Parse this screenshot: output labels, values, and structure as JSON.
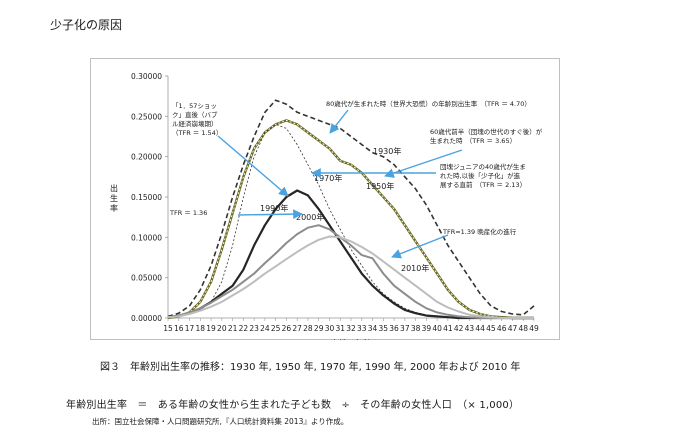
{
  "page_title": "少子化の原因",
  "caption": "図３　年齢別出生率の推移：1930 年, 1950 年, 1970 年, 1990 年, 2000 年および 2010 年",
  "formula": "年齢別出生率　＝　ある年齢の女性から生まれた子ども数　÷　その年齢の女性人口　（× 1,000）",
  "source": "出所：国立社会保障・人口問題研究所,『人口統計資料集 2013』より作成。",
  "chart_data": {
    "type": "line",
    "xlabel": "女性の年齢",
    "ylabel": "出生率",
    "ylim": [
      0,
      0.3
    ],
    "yticks": [
      "0.00000",
      "0.05000",
      "0.10000",
      "0.15000",
      "0.20000",
      "0.25000",
      "0.30000"
    ],
    "x": [
      15,
      16,
      17,
      18,
      19,
      20,
      21,
      22,
      23,
      24,
      25,
      26,
      27,
      28,
      29,
      30,
      31,
      32,
      33,
      34,
      35,
      36,
      37,
      38,
      39,
      40,
      41,
      42,
      43,
      44,
      45,
      46,
      47,
      48,
      49
    ],
    "series_labels": [
      "1930年",
      "1950年",
      "1970年",
      "1990年",
      "2000年",
      "2010年"
    ],
    "series": [
      {
        "name": "1930年",
        "values": [
          0.002,
          0.006,
          0.015,
          0.035,
          0.065,
          0.105,
          0.15,
          0.19,
          0.225,
          0.255,
          0.27,
          0.265,
          0.255,
          0.25,
          0.245,
          0.24,
          0.235,
          0.225,
          0.215,
          0.205,
          0.2,
          0.19,
          0.175,
          0.16,
          0.14,
          0.115,
          0.09,
          0.07,
          0.05,
          0.03,
          0.015,
          0.008,
          0.005,
          0.004,
          0.015
        ]
      },
      {
        "name": "1950年",
        "values": [
          0.0,
          0.002,
          0.007,
          0.02,
          0.045,
          0.085,
          0.13,
          0.175,
          0.21,
          0.23,
          0.24,
          0.245,
          0.24,
          0.23,
          0.22,
          0.21,
          0.195,
          0.19,
          0.18,
          0.165,
          0.15,
          0.135,
          0.115,
          0.095,
          0.075,
          0.055,
          0.035,
          0.02,
          0.01,
          0.005,
          0.002,
          0.001,
          0.0,
          0.0,
          0.0
        ]
      },
      {
        "name": "1970年",
        "values": [
          0.0,
          0.002,
          0.005,
          0.01,
          0.02,
          0.045,
          0.09,
          0.15,
          0.2,
          0.23,
          0.24,
          0.235,
          0.215,
          0.19,
          0.165,
          0.135,
          0.11,
          0.085,
          0.065,
          0.045,
          0.03,
          0.02,
          0.012,
          0.007,
          0.004,
          0.002,
          0.001,
          0.0,
          0.0,
          0.0,
          0.0,
          0.0,
          0.0,
          0.0,
          0.0
        ]
      },
      {
        "name": "1990年",
        "values": [
          0.001,
          0.003,
          0.006,
          0.012,
          0.02,
          0.03,
          0.04,
          0.06,
          0.09,
          0.115,
          0.135,
          0.15,
          0.158,
          0.152,
          0.135,
          0.115,
          0.095,
          0.075,
          0.055,
          0.04,
          0.028,
          0.018,
          0.01,
          0.006,
          0.003,
          0.002,
          0.001,
          0.0,
          0.0,
          0.0,
          0.0,
          0.0,
          0.0,
          0.0,
          0.0
        ]
      },
      {
        "name": "2000年",
        "values": [
          0.001,
          0.003,
          0.007,
          0.012,
          0.019,
          0.027,
          0.035,
          0.045,
          0.055,
          0.068,
          0.08,
          0.093,
          0.104,
          0.112,
          0.115,
          0.11,
          0.1,
          0.09,
          0.078,
          0.074,
          0.055,
          0.04,
          0.03,
          0.02,
          0.012,
          0.007,
          0.004,
          0.002,
          0.001,
          0.0,
          0.0,
          0.0,
          0.0,
          0.0,
          0.0
        ]
      },
      {
        "name": "2010年",
        "values": [
          0.001,
          0.002,
          0.005,
          0.009,
          0.014,
          0.02,
          0.028,
          0.036,
          0.045,
          0.055,
          0.064,
          0.073,
          0.082,
          0.09,
          0.097,
          0.101,
          0.1,
          0.095,
          0.088,
          0.08,
          0.07,
          0.06,
          0.05,
          0.04,
          0.03,
          0.02,
          0.013,
          0.008,
          0.004,
          0.002,
          0.001,
          0.0,
          0.0,
          0.0,
          0.0
        ]
      }
    ],
    "annotations": [
      {
        "lines": [
          "「1．57ショッ",
          "ク」直後（バブ",
          "ル経済崩壊期）",
          "（TFR ＝ 1.54）"
        ]
      },
      {
        "lines": [
          "80歳代が生まれた時（世界大恐慌）の年齢別出生率　（TFR ＝ 4.70）"
        ]
      },
      {
        "lines": [
          "60歳代前半（団塊の世代のすぐ後）が",
          "生まれた時　（TFR ＝ 3.65）"
        ]
      },
      {
        "lines": [
          "団塊ジュニアの40歳代が生ま",
          "れた時,以後「少子化」が進",
          "展する直前　（TFR ＝ 2.13）"
        ]
      },
      {
        "lines": [
          "TFR ＝ 1.36"
        ]
      },
      {
        "lines": [
          "TFR=1.39 晩産化の進行"
        ]
      }
    ]
  }
}
